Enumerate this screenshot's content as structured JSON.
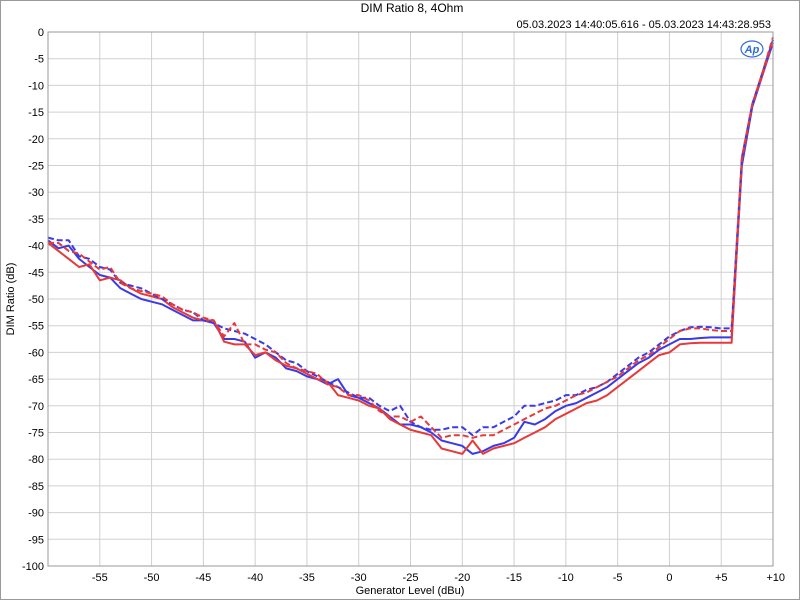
{
  "chart_data": {
    "type": "line",
    "title": "DIM Ratio 8, 4Ohm",
    "subtitle": "05.03.2023 14:40:05.616 - 05.03.2023 14:43:28.953",
    "xlabel": "Generator Level (dBu)",
    "ylabel": "DIM Ratio (dB)",
    "xlim": [
      -60,
      10
    ],
    "ylim": [
      -100,
      0
    ],
    "grid": true,
    "legend": "none",
    "logo_text": "Ap",
    "x_ticks": [
      {
        "v": -55,
        "label": "-55"
      },
      {
        "v": -50,
        "label": "-50"
      },
      {
        "v": -45,
        "label": "-45"
      },
      {
        "v": -40,
        "label": "-40"
      },
      {
        "v": -35,
        "label": "-35"
      },
      {
        "v": -30,
        "label": "-30"
      },
      {
        "v": -25,
        "label": "-25"
      },
      {
        "v": -20,
        "label": "-20"
      },
      {
        "v": -15,
        "label": "-15"
      },
      {
        "v": -10,
        "label": "-10"
      },
      {
        "v": -5,
        "label": "-5"
      },
      {
        "v": 0,
        "label": "0"
      },
      {
        "v": 5,
        "label": "+5"
      },
      {
        "v": 10,
        "label": "+10"
      }
    ],
    "y_ticks": [
      {
        "v": 0,
        "label": "0"
      },
      {
        "v": -5,
        "label": "-5"
      },
      {
        "v": -10,
        "label": "-10"
      },
      {
        "v": -15,
        "label": "-15"
      },
      {
        "v": -20,
        "label": "-20"
      },
      {
        "v": -25,
        "label": "-25"
      },
      {
        "v": -30,
        "label": "-30"
      },
      {
        "v": -35,
        "label": "-35"
      },
      {
        "v": -40,
        "label": "-40"
      },
      {
        "v": -45,
        "label": "-45"
      },
      {
        "v": -50,
        "label": "-50"
      },
      {
        "v": -55,
        "label": "-55"
      },
      {
        "v": -60,
        "label": "-60"
      },
      {
        "v": -65,
        "label": "-65"
      },
      {
        "v": -70,
        "label": "-70"
      },
      {
        "v": -75,
        "label": "-75"
      },
      {
        "v": -80,
        "label": "-80"
      },
      {
        "v": -85,
        "label": "-85"
      },
      {
        "v": -90,
        "label": "-90"
      },
      {
        "v": -95,
        "label": "-95"
      },
      {
        "v": -100,
        "label": "-100"
      }
    ],
    "series": [
      {
        "color": "#3a3ae6",
        "dash": false,
        "points": [
          [
            -60,
            -39
          ],
          [
            -59,
            -40.5
          ],
          [
            -58,
            -40
          ],
          [
            -57,
            -42.5
          ],
          [
            -56,
            -44
          ],
          [
            -55,
            -45.5
          ],
          [
            -54,
            -46
          ],
          [
            -53,
            -48
          ],
          [
            -52,
            -49
          ],
          [
            -51,
            -50
          ],
          [
            -50,
            -50.5
          ],
          [
            -49,
            -51
          ],
          [
            -48,
            -52
          ],
          [
            -47,
            -53
          ],
          [
            -46,
            -54
          ],
          [
            -45,
            -54
          ],
          [
            -44,
            -54.5
          ],
          [
            -43,
            -57.5
          ],
          [
            -42,
            -57.5
          ],
          [
            -41,
            -58
          ],
          [
            -40,
            -61
          ],
          [
            -39,
            -60
          ],
          [
            -38,
            -61
          ],
          [
            -37,
            -63
          ],
          [
            -36,
            -63.5
          ],
          [
            -35,
            -64.5
          ],
          [
            -34,
            -65
          ],
          [
            -33,
            -66
          ],
          [
            -32,
            -65
          ],
          [
            -31,
            -68
          ],
          [
            -30,
            -68.5
          ],
          [
            -29,
            -69.5
          ],
          [
            -28,
            -70.5
          ],
          [
            -27,
            -72
          ],
          [
            -26,
            -73.5
          ],
          [
            -25,
            -73.5
          ],
          [
            -24,
            -74
          ],
          [
            -23,
            -75
          ],
          [
            -22,
            -76.5
          ],
          [
            -21,
            -77
          ],
          [
            -20,
            -77.5
          ],
          [
            -19,
            -79
          ],
          [
            -18,
            -78.5
          ],
          [
            -17,
            -77.5
          ],
          [
            -16,
            -77
          ],
          [
            -15,
            -76
          ],
          [
            -14,
            -73
          ],
          [
            -13,
            -73.5
          ],
          [
            -12,
            -72.5
          ],
          [
            -11,
            -71
          ],
          [
            -10,
            -70
          ],
          [
            -9,
            -69.5
          ],
          [
            -8,
            -68.5
          ],
          [
            -7,
            -67.5
          ],
          [
            -6,
            -66.5
          ],
          [
            -5,
            -65
          ],
          [
            -4,
            -63.5
          ],
          [
            -3,
            -62
          ],
          [
            -2,
            -61
          ],
          [
            -1,
            -59.5
          ],
          [
            0,
            -58.5
          ],
          [
            1,
            -57.5
          ],
          [
            2,
            -57.5
          ],
          [
            3,
            -57.3
          ],
          [
            4,
            -57.2
          ],
          [
            5,
            -57.2
          ],
          [
            6,
            -57.2
          ],
          [
            7,
            -25
          ],
          [
            8,
            -14
          ],
          [
            9,
            -8
          ],
          [
            10,
            -2
          ]
        ]
      },
      {
        "color": "#e63a3a",
        "dash": false,
        "points": [
          [
            -60,
            -39.5
          ],
          [
            -59,
            -41
          ],
          [
            -58,
            -42.5
          ],
          [
            -57,
            -44
          ],
          [
            -56,
            -43.5
          ],
          [
            -55,
            -46.5
          ],
          [
            -54,
            -46
          ],
          [
            -53,
            -46.5
          ],
          [
            -52,
            -48
          ],
          [
            -51,
            -49
          ],
          [
            -50,
            -49.5
          ],
          [
            -49,
            -50
          ],
          [
            -48,
            -51.5
          ],
          [
            -47,
            -52.5
          ],
          [
            -46,
            -53.5
          ],
          [
            -45,
            -54
          ],
          [
            -44,
            -54
          ],
          [
            -43,
            -58
          ],
          [
            -42,
            -58.5
          ],
          [
            -41,
            -58.5
          ],
          [
            -40,
            -60.5
          ],
          [
            -39,
            -60
          ],
          [
            -38,
            -61.5
          ],
          [
            -37,
            -62.5
          ],
          [
            -36,
            -63
          ],
          [
            -35,
            -64
          ],
          [
            -34,
            -65
          ],
          [
            -33,
            -65.5
          ],
          [
            -32,
            -68
          ],
          [
            -31,
            -68.5
          ],
          [
            -30,
            -69
          ],
          [
            -29,
            -70
          ],
          [
            -28,
            -70.5
          ],
          [
            -27,
            -72.5
          ],
          [
            -26,
            -73.5
          ],
          [
            -25,
            -74.5
          ],
          [
            -24,
            -75
          ],
          [
            -23,
            -75.5
          ],
          [
            -22,
            -78
          ],
          [
            -21,
            -78.5
          ],
          [
            -20,
            -79
          ],
          [
            -19,
            -76.5
          ],
          [
            -18,
            -79
          ],
          [
            -17,
            -78
          ],
          [
            -16,
            -77.5
          ],
          [
            -15,
            -77
          ],
          [
            -14,
            -76
          ],
          [
            -13,
            -75
          ],
          [
            -12,
            -74
          ],
          [
            -11,
            -72.5
          ],
          [
            -10,
            -71.5
          ],
          [
            -9,
            -70.5
          ],
          [
            -8,
            -69.5
          ],
          [
            -7,
            -69
          ],
          [
            -6,
            -68
          ],
          [
            -5,
            -66.5
          ],
          [
            -4,
            -65
          ],
          [
            -3,
            -63.5
          ],
          [
            -2,
            -62
          ],
          [
            -1,
            -60.5
          ],
          [
            0,
            -60
          ],
          [
            1,
            -58.5
          ],
          [
            2,
            -58.3
          ],
          [
            3,
            -58.2
          ],
          [
            4,
            -58.2
          ],
          [
            5,
            -58.2
          ],
          [
            6,
            -58.2
          ],
          [
            7,
            -24
          ],
          [
            8,
            -13.5
          ],
          [
            9,
            -8
          ],
          [
            10,
            -1.5
          ]
        ]
      },
      {
        "color": "#3a3ae6",
        "dash": true,
        "points": [
          [
            -60,
            -38.5
          ],
          [
            -59,
            -39
          ],
          [
            -58,
            -39
          ],
          [
            -57,
            -42
          ],
          [
            -56,
            -42.5
          ],
          [
            -55,
            -44
          ],
          [
            -54,
            -44.5
          ],
          [
            -53,
            -47
          ],
          [
            -52,
            -47.5
          ],
          [
            -51,
            -48
          ],
          [
            -50,
            -49
          ],
          [
            -49,
            -50
          ],
          [
            -48,
            -51
          ],
          [
            -47,
            -52
          ],
          [
            -46,
            -52.5
          ],
          [
            -45,
            -54
          ],
          [
            -44,
            -54.5
          ],
          [
            -43,
            -55.5
          ],
          [
            -42,
            -56
          ],
          [
            -41,
            -56.5
          ],
          [
            -40,
            -57.5
          ],
          [
            -39,
            -58.5
          ],
          [
            -38,
            -60
          ],
          [
            -37,
            -61.5
          ],
          [
            -36,
            -62
          ],
          [
            -35,
            -63.5
          ],
          [
            -34,
            -64.5
          ],
          [
            -33,
            -65.5
          ],
          [
            -32,
            -66.5
          ],
          [
            -31,
            -67.5
          ],
          [
            -30,
            -68.5
          ],
          [
            -29,
            -68.5
          ],
          [
            -28,
            -70
          ],
          [
            -27,
            -71
          ],
          [
            -26,
            -70
          ],
          [
            -25,
            -73
          ],
          [
            -24,
            -74
          ],
          [
            -23,
            -74.5
          ],
          [
            -22,
            -74.5
          ],
          [
            -21,
            -74
          ],
          [
            -20,
            -74
          ],
          [
            -19,
            -75.5
          ],
          [
            -18,
            -74
          ],
          [
            -17,
            -74
          ],
          [
            -16,
            -73
          ],
          [
            -15,
            -72
          ],
          [
            -14,
            -70
          ],
          [
            -13,
            -70
          ],
          [
            -12,
            -69.5
          ],
          [
            -11,
            -69
          ],
          [
            -10,
            -68
          ],
          [
            -9,
            -68
          ],
          [
            -8,
            -67
          ],
          [
            -7,
            -66.5
          ],
          [
            -6,
            -65.5
          ],
          [
            -5,
            -64
          ],
          [
            -4,
            -62.5
          ],
          [
            -3,
            -61
          ],
          [
            -2,
            -60
          ],
          [
            -1,
            -58.5
          ],
          [
            0,
            -57
          ],
          [
            1,
            -56
          ],
          [
            2,
            -55.3
          ],
          [
            3,
            -55.2
          ],
          [
            4,
            -55.3
          ],
          [
            5,
            -55.5
          ],
          [
            6,
            -55.5
          ],
          [
            7,
            -23.5
          ],
          [
            8,
            -13.5
          ],
          [
            9,
            -7.5
          ],
          [
            10,
            -1.5
          ]
        ]
      },
      {
        "color": "#e63a3a",
        "dash": true,
        "points": [
          [
            -60,
            -39.5
          ],
          [
            -59,
            -39.5
          ],
          [
            -58,
            -41
          ],
          [
            -57,
            -41.5
          ],
          [
            -56,
            -43
          ],
          [
            -55,
            -44.5
          ],
          [
            -54,
            -44
          ],
          [
            -53,
            -47
          ],
          [
            -52,
            -48
          ],
          [
            -51,
            -48.5
          ],
          [
            -50,
            -49
          ],
          [
            -49,
            -49.5
          ],
          [
            -48,
            -51
          ],
          [
            -47,
            -52
          ],
          [
            -46,
            -52.5
          ],
          [
            -45,
            -53.5
          ],
          [
            -44,
            -54
          ],
          [
            -43,
            -57
          ],
          [
            -42,
            -54.5
          ],
          [
            -41,
            -58.5
          ],
          [
            -40,
            -58.5
          ],
          [
            -39,
            -59.5
          ],
          [
            -38,
            -60
          ],
          [
            -37,
            -62
          ],
          [
            -36,
            -63
          ],
          [
            -35,
            -63.5
          ],
          [
            -34,
            -64
          ],
          [
            -33,
            -66
          ],
          [
            -32,
            -66.5
          ],
          [
            -31,
            -68
          ],
          [
            -30,
            -68
          ],
          [
            -29,
            -69
          ],
          [
            -28,
            -71
          ],
          [
            -27,
            -72
          ],
          [
            -26,
            -72
          ],
          [
            -25,
            -73
          ],
          [
            -24,
            -72
          ],
          [
            -23,
            -74
          ],
          [
            -22,
            -76
          ],
          [
            -21,
            -75.5
          ],
          [
            -20,
            -75.5
          ],
          [
            -19,
            -76
          ],
          [
            -18,
            -75.5
          ],
          [
            -17,
            -75.5
          ],
          [
            -16,
            -74.5
          ],
          [
            -15,
            -73.5
          ],
          [
            -14,
            -72.5
          ],
          [
            -13,
            -71.5
          ],
          [
            -12,
            -70.5
          ],
          [
            -11,
            -70
          ],
          [
            -10,
            -69
          ],
          [
            -9,
            -68
          ],
          [
            -8,
            -67.5
          ],
          [
            -7,
            -66.5
          ],
          [
            -6,
            -65.5
          ],
          [
            -5,
            -64.5
          ],
          [
            -4,
            -63
          ],
          [
            -3,
            -61.5
          ],
          [
            -2,
            -60.5
          ],
          [
            -1,
            -59
          ],
          [
            0,
            -57.5
          ],
          [
            1,
            -56
          ],
          [
            2,
            -55.5
          ],
          [
            3,
            -55.5
          ],
          [
            4,
            -55.8
          ],
          [
            5,
            -56
          ],
          [
            6,
            -56
          ],
          [
            7,
            -23.5
          ],
          [
            8,
            -13.5
          ],
          [
            9,
            -7.5
          ],
          [
            10,
            -1
          ]
        ]
      }
    ]
  }
}
